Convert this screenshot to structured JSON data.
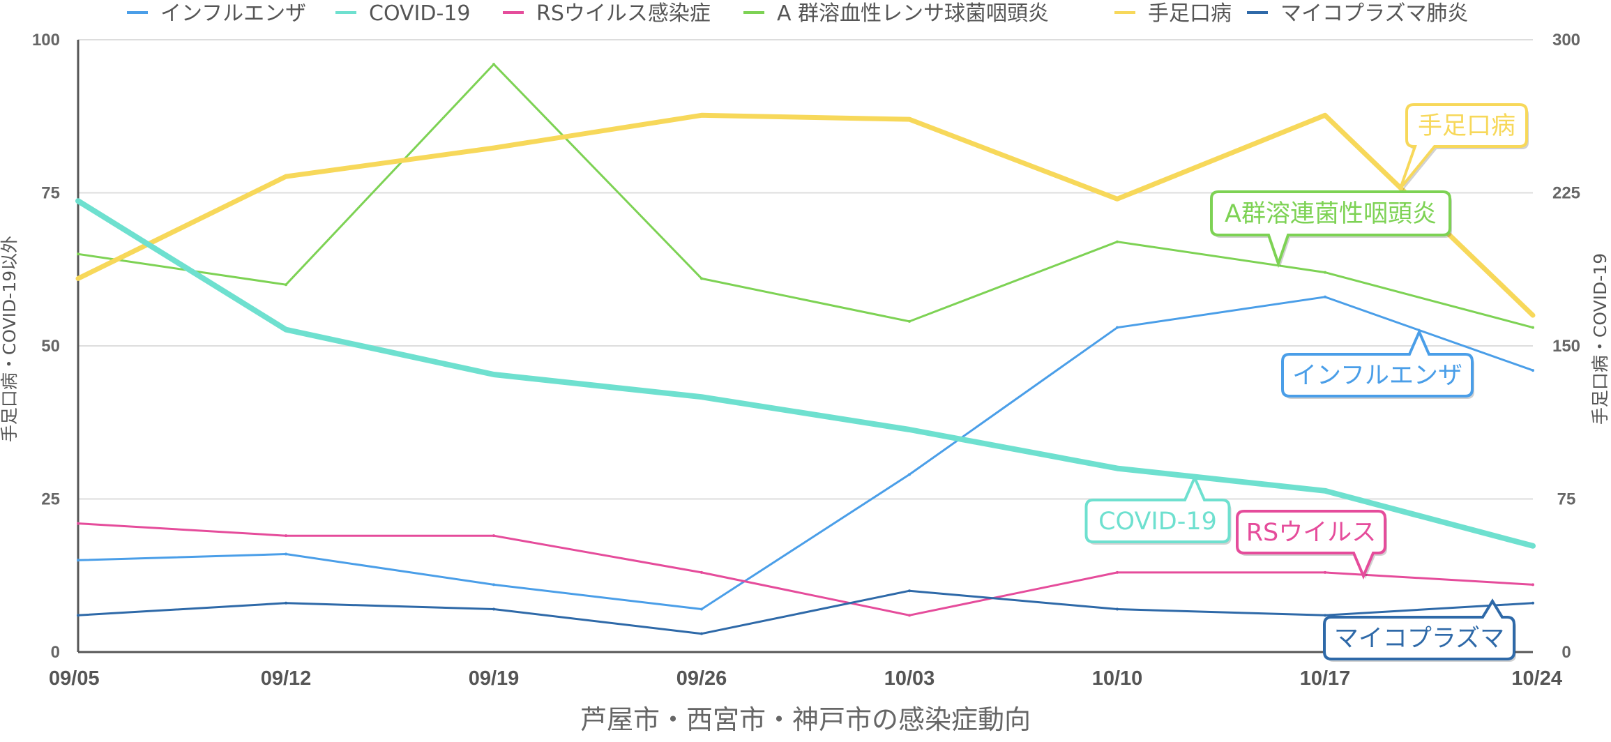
{
  "chart_data": {
    "type": "line",
    "title": "芦屋市・西宮市・神戸市の感染症動向",
    "ylabel_left": "手足口病・COVID-19以外",
    "ylabel_right": "手足口病・COVID-19",
    "ylim_left": [
      0,
      100
    ],
    "ylim_right": [
      0,
      300
    ],
    "yticks_left": [
      "0",
      "25",
      "50",
      "75",
      "100"
    ],
    "yticks_right": [
      "0",
      "75",
      "150",
      "225",
      "300"
    ],
    "categories": [
      "09/05",
      "09/12",
      "09/19",
      "09/26",
      "10/03",
      "10/10",
      "10/17",
      "10/24"
    ],
    "grid": true,
    "legend_position": "top",
    "series": [
      {
        "name": "インフルエンザ",
        "color": "#4a9ee8",
        "axis": "left",
        "width": 3,
        "values": [
          15,
          16,
          11,
          7,
          29,
          53,
          58,
          46
        ],
        "callout": "インフルエンザ"
      },
      {
        "name": "COVID-19",
        "color": "#6ee0cf",
        "axis": "right",
        "width": 8,
        "values": [
          221,
          158,
          136,
          125,
          109,
          90,
          79,
          52
        ],
        "callout": "COVID-19"
      },
      {
        "name": "RSウイルス感染症",
        "color": "#e54c9b",
        "axis": "left",
        "width": 3,
        "values": [
          21,
          19,
          19,
          13,
          6,
          13,
          13,
          11
        ],
        "callout": "RSウイルス"
      },
      {
        "name": "A 群溶血性レンサ球菌咽頭炎",
        "color": "#7dd254",
        "axis": "left",
        "width": 3,
        "values": [
          65,
          60,
          96,
          61,
          54,
          67,
          62,
          53
        ],
        "callout": "A群溶連菌性咽頭炎"
      },
      {
        "name": "手足口病",
        "color": "#f7d85a",
        "axis": "right",
        "width": 7,
        "values": [
          183,
          233,
          247,
          263,
          261,
          222,
          263,
          165
        ],
        "callout": "手足口病"
      },
      {
        "name": "マイコプラズマ肺炎",
        "color": "#2e69a8",
        "axis": "left",
        "width": 3,
        "values": [
          6,
          8,
          7,
          3,
          10,
          7,
          6,
          8
        ],
        "callout": "マイコプラズマ"
      }
    ]
  }
}
